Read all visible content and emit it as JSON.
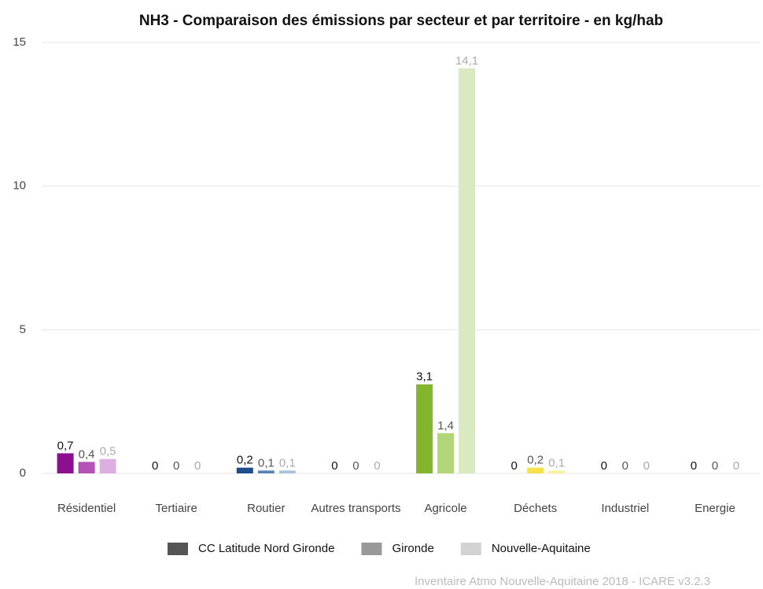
{
  "chart_data": {
    "type": "bar",
    "title": "NH3 - Comparaison des émissions par secteur et par territoire - en kg/hab",
    "categories": [
      "Résidentiel",
      "Tertiaire",
      "Routier",
      "Autres transports",
      "Agricole",
      "Déchets",
      "Industriel",
      "Energie"
    ],
    "series": [
      {
        "name": "CC Latitude Nord Gironde",
        "color": "#555555",
        "label_color": "#111111",
        "values": [
          0.7,
          0,
          0.2,
          0,
          3.1,
          0,
          0,
          0
        ],
        "value_labels": [
          "0,7",
          "0",
          "0,2",
          "0",
          "3,1",
          "0",
          "0",
          "0"
        ],
        "colors": [
          "#8b0f8f",
          "#a0522d",
          "#1f4e8c",
          "#2a7f7f",
          "#84b62d",
          "#f0d000",
          "#c8822a",
          "#c0304a"
        ]
      },
      {
        "name": "Gironde",
        "color": "#999999",
        "label_color": "#555555",
        "values": [
          0.4,
          0,
          0.1,
          0,
          1.4,
          0.2,
          0,
          0
        ],
        "value_labels": [
          "0,4",
          "0",
          "0,1",
          "0",
          "1,4",
          "0,2",
          "0",
          "0"
        ],
        "colors": [
          "#b452b6",
          "#c58a5c",
          "#5a84b8",
          "#6aaeae",
          "#b3d57a",
          "#f6e24a",
          "#dba866",
          "#d8708a"
        ]
      },
      {
        "name": "Nouvelle-Aquitaine",
        "color": "#d3d3d3",
        "label_color": "#aaaaaa",
        "values": [
          0.5,
          0,
          0.1,
          0,
          14.1,
          0.1,
          0,
          0
        ],
        "value_labels": [
          "0,5",
          "0",
          "0,1",
          "0",
          "14,1",
          "0,1",
          "0",
          "0"
        ],
        "colors": [
          "#ddaee0",
          "#e3c3a8",
          "#a9c2df",
          "#b5d8d8",
          "#d9eac0",
          "#faf0a0",
          "#efd2ac",
          "#edb5c2"
        ]
      }
    ],
    "ylim": [
      0,
      15
    ],
    "yticks": [
      0,
      5,
      10,
      15
    ],
    "grid": true,
    "legend": "bottom",
    "source": "Inventaire Atmo Nouvelle-Aquitaine 2018 - ICARE v3.2.3"
  }
}
